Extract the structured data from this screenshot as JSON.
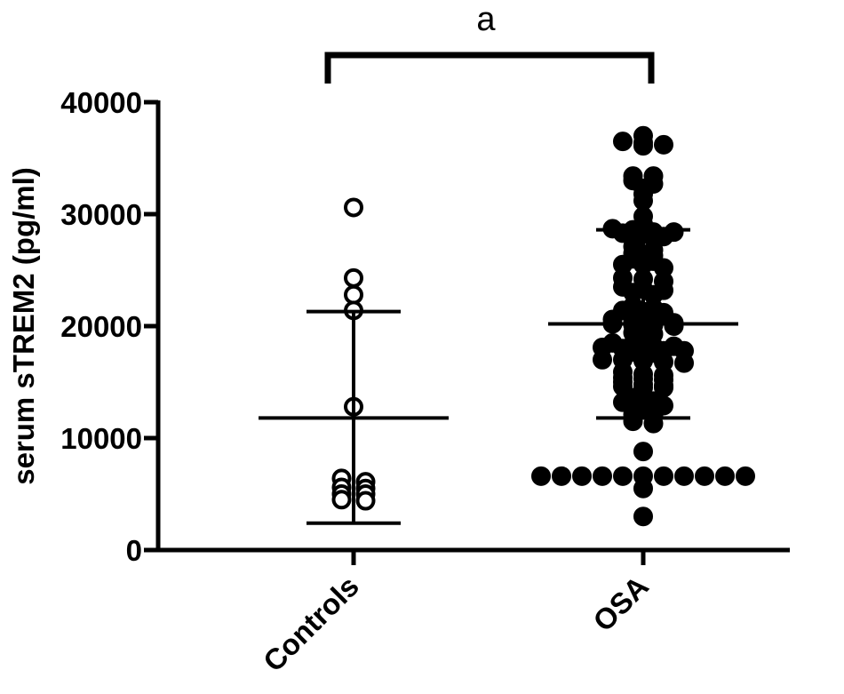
{
  "chart_data": {
    "type": "scatter",
    "ylabel": "serum sTREM2 (pg/ml)",
    "xlabel": "",
    "ylim": [
      0,
      40000
    ],
    "yticks": [
      0,
      10000,
      20000,
      30000,
      40000
    ],
    "ytick_labels": [
      "0",
      "10000",
      "20000",
      "30000",
      "40000"
    ],
    "categories": [
      "Controls",
      "OSA"
    ],
    "significance_label": "a",
    "grid": false,
    "series": [
      {
        "category": "Controls",
        "marker": "open-circle",
        "color": "#000000",
        "mean": 11800,
        "error_low": 2400,
        "error_high": 21300,
        "points": [
          30600,
          24300,
          22800,
          21400,
          12800,
          6100,
          5500,
          5000,
          4400,
          4500,
          5000,
          5600,
          6400
        ]
      },
      {
        "category": "OSA",
        "marker": "filled-circle",
        "color": "#000000",
        "mean": 20200,
        "error_low": 11800,
        "error_high": 28600,
        "points": [
          36500,
          36200,
          36100,
          36400,
          37000,
          33400,
          33000,
          32300,
          31200,
          31800,
          32700,
          33400,
          29100,
          28300,
          28400,
          28000,
          28600,
          28700,
          28200,
          28400,
          29800,
          27100,
          26300,
          26000,
          25500,
          25800,
          25200,
          25500,
          26500,
          26800,
          24200,
          24000,
          23300,
          23000,
          23200,
          22800,
          23500,
          24300,
          21800,
          21400,
          21200,
          21600,
          21300,
          20400,
          20100,
          20000,
          20100,
          20200,
          20400,
          20300,
          20600,
          19400,
          19300,
          19000,
          18400,
          18200,
          18100,
          17900,
          17800,
          17700,
          17600,
          17800,
          18000,
          18200,
          18500,
          17000,
          16800,
          16900,
          16700,
          17000,
          15900,
          15600,
          15400,
          15200,
          15000,
          15300,
          15700,
          14800,
          14600,
          14500,
          14500,
          14700,
          13600,
          13200,
          13000,
          12900,
          13300,
          12000,
          11300,
          11500,
          12100,
          8800,
          6600,
          6600,
          6600,
          6600,
          6600,
          6600,
          6600,
          6600,
          6600,
          6600,
          6600,
          5500,
          3000
        ]
      }
    ]
  }
}
